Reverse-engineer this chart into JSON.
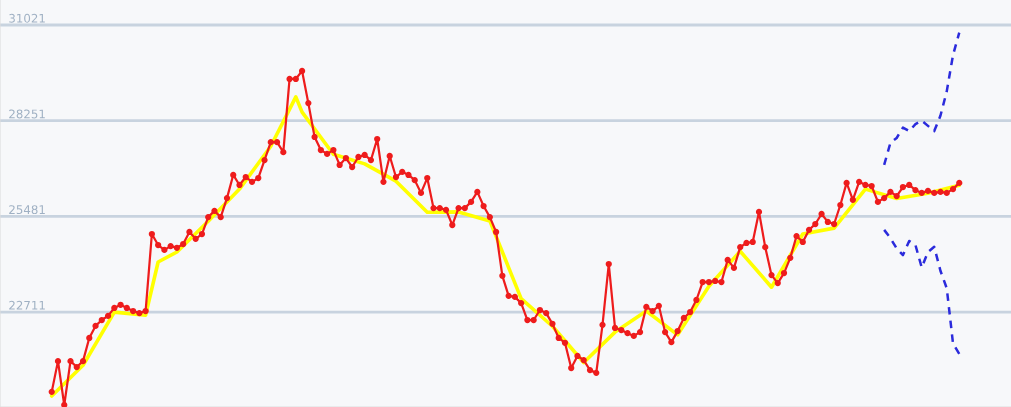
{
  "chart_data": {
    "type": "line",
    "categories": [
      null,
      null,
      null,
      null,
      null,
      null,
      null,
      null,
      null,
      null,
      null,
      null,
      null,
      null,
      null,
      null,
      null,
      null,
      null,
      null,
      null,
      null,
      null,
      null,
      null,
      null,
      null,
      null,
      null,
      null,
      null,
      null,
      null,
      null,
      null,
      null,
      null,
      null,
      null,
      null,
      null,
      null,
      null,
      null,
      null,
      null,
      null,
      null,
      null,
      null,
      null,
      null,
      null,
      null,
      null,
      null,
      null,
      null,
      null,
      null,
      null,
      null,
      null,
      null,
      null,
      null,
      null,
      null,
      null,
      null,
      null,
      null,
      null,
      null,
      null,
      null,
      null,
      null,
      null,
      null,
      null,
      null,
      null,
      null,
      null,
      null,
      null,
      null,
      null,
      null,
      null,
      null,
      null,
      null,
      null,
      null,
      null,
      null,
      null,
      null,
      null,
      null,
      null,
      null,
      null,
      null,
      null,
      null,
      null,
      null,
      null,
      null,
      null,
      null,
      null,
      null,
      null,
      null,
      null,
      null,
      null,
      null,
      null,
      null,
      null,
      null,
      null,
      null,
      null,
      null,
      null,
      null,
      null,
      null,
      null,
      null,
      null,
      null,
      null,
      null,
      null,
      null,
      null,
      null,
      null,
      null
    ],
    "series": [
      {
        "color": "#ffff00",
        "line_style": "solid",
        "marker": "none",
        "values": [
          20280,
          null,
          null,
          null,
          null,
          21170,
          null,
          null,
          null,
          null,
          22710,
          null,
          null,
          null,
          null,
          22620,
          null,
          24160,
          null,
          null,
          24450,
          null,
          null,
          null,
          null,
          25340,
          null,
          null,
          null,
          null,
          26270,
          null,
          null,
          null,
          null,
          27510,
          null,
          null,
          null,
          28940,
          28500,
          null,
          null,
          null,
          null,
          27280,
          null,
          null,
          null,
          null,
          27000,
          null,
          null,
          null,
          null,
          26500,
          null,
          null,
          null,
          null,
          25600,
          null,
          null,
          null,
          null,
          25610,
          null,
          null,
          null,
          null,
          25350,
          null,
          null,
          null,
          null,
          23100,
          null,
          null,
          null,
          null,
          22300,
          null,
          null,
          null,
          null,
          21250,
          null,
          null,
          null,
          null,
          22130,
          null,
          null,
          null,
          null,
          22740,
          null,
          null,
          null,
          null,
          22050,
          null,
          null,
          null,
          null,
          23460,
          null,
          null,
          null,
          null,
          24470,
          null,
          null,
          null,
          null,
          23430,
          null,
          null,
          null,
          null,
          24970,
          null,
          null,
          null,
          null,
          25140,
          null,
          null,
          null,
          null,
          26270,
          null,
          null,
          null,
          null,
          26000,
          null,
          null,
          null,
          null,
          26150,
          null,
          null,
          null,
          null,
          26380
        ]
      },
      {
        "color": "#ee1c1c",
        "line_style": "solid",
        "marker": "circle",
        "values": [
          20400,
          21290,
          20020,
          21290,
          21120,
          21290,
          21960,
          22310,
          22480,
          22600,
          22830,
          22920,
          22830,
          22740,
          22680,
          22740,
          24970,
          24650,
          24510,
          24620,
          24570,
          24680,
          25030,
          24830,
          24970,
          25460,
          25640,
          25460,
          26010,
          26680,
          26390,
          26620,
          26480,
          26590,
          27110,
          27630,
          27630,
          27340,
          29460,
          29460,
          29690,
          28760,
          27780,
          27400,
          27290,
          27400,
          26970,
          27170,
          26910,
          27200,
          27260,
          27110,
          27720,
          26480,
          27230,
          26620,
          26770,
          26680,
          26530,
          26160,
          26590,
          25720,
          25720,
          25670,
          25230,
          25720,
          25720,
          25900,
          26190,
          25780,
          25460,
          25030,
          23760,
          23180,
          23150,
          22970,
          22480,
          22480,
          22770,
          22680,
          22370,
          21960,
          21820,
          21090,
          21440,
          21320,
          21030,
          20950,
          22340,
          24100,
          22250,
          22190,
          22100,
          22020,
          22130,
          22860,
          22740,
          22890,
          22130,
          21840,
          22160,
          22540,
          22710,
          23060,
          23580,
          23580,
          23610,
          23580,
          24220,
          23990,
          24590,
          24710,
          24740,
          25610,
          24590,
          23780,
          23550,
          23840,
          24280,
          24910,
          24740,
          25090,
          25260,
          25550,
          25320,
          25260,
          25810,
          26450,
          25960,
          26480,
          26390,
          26360,
          25900,
          26010,
          26190,
          26070,
          26330,
          26390,
          26240,
          26160,
          26220,
          26160,
          26190,
          26160,
          26270,
          26450
        ]
      },
      {
        "color": "#2b2bdc",
        "line_style": "dashed",
        "marker": "none",
        "values": [
          null,
          null,
          null,
          null,
          null,
          null,
          null,
          null,
          null,
          null,
          null,
          null,
          null,
          null,
          null,
          null,
          null,
          null,
          null,
          null,
          null,
          null,
          null,
          null,
          null,
          null,
          null,
          null,
          null,
          null,
          null,
          null,
          null,
          null,
          null,
          null,
          null,
          null,
          null,
          null,
          null,
          null,
          null,
          null,
          null,
          null,
          null,
          null,
          null,
          null,
          null,
          null,
          null,
          null,
          null,
          null,
          null,
          null,
          null,
          null,
          null,
          null,
          null,
          null,
          null,
          null,
          null,
          null,
          null,
          null,
          null,
          null,
          null,
          null,
          null,
          null,
          null,
          null,
          null,
          null,
          null,
          null,
          null,
          null,
          null,
          null,
          null,
          null,
          null,
          null,
          null,
          null,
          null,
          null,
          null,
          null,
          null,
          null,
          null,
          null,
          null,
          null,
          null,
          null,
          null,
          null,
          null,
          null,
          null,
          null,
          null,
          null,
          null,
          null,
          null,
          null,
          null,
          null,
          null,
          null,
          null,
          null,
          null,
          null,
          null,
          null,
          null,
          null,
          null,
          null,
          null,
          null,
          null,
          26970,
          27610,
          27750,
          28050,
          27950,
          28150,
          28250,
          28100,
          27950,
          28400,
          29100,
          30150,
          30800
        ]
      },
      {
        "color": "#2b2bdc",
        "line_style": "dashed",
        "marker": "none",
        "values": [
          null,
          null,
          null,
          null,
          null,
          null,
          null,
          null,
          null,
          null,
          null,
          null,
          null,
          null,
          null,
          null,
          null,
          null,
          null,
          null,
          null,
          null,
          null,
          null,
          null,
          null,
          null,
          null,
          null,
          null,
          null,
          null,
          null,
          null,
          null,
          null,
          null,
          null,
          null,
          null,
          null,
          null,
          null,
          null,
          null,
          null,
          null,
          null,
          null,
          null,
          null,
          null,
          null,
          null,
          null,
          null,
          null,
          null,
          null,
          null,
          null,
          null,
          null,
          null,
          null,
          null,
          null,
          null,
          null,
          null,
          null,
          null,
          null,
          null,
          null,
          null,
          null,
          null,
          null,
          null,
          null,
          null,
          null,
          null,
          null,
          null,
          null,
          null,
          null,
          null,
          null,
          null,
          null,
          null,
          null,
          null,
          null,
          null,
          null,
          null,
          null,
          null,
          null,
          null,
          null,
          null,
          null,
          null,
          null,
          null,
          null,
          null,
          null,
          null,
          null,
          null,
          null,
          null,
          null,
          null,
          null,
          null,
          null,
          null,
          null,
          null,
          null,
          null,
          null,
          null,
          null,
          null,
          null,
          25090,
          24850,
          24550,
          24360,
          24770,
          24650,
          24000,
          24450,
          24600,
          23900,
          23400,
          21800,
          21500
        ]
      }
    ],
    "ylim": [
      19962,
      31745
    ],
    "yticks": [
      22711,
      25481,
      28251,
      31021
    ],
    "grid": "y",
    "tick_labels": "y"
  }
}
